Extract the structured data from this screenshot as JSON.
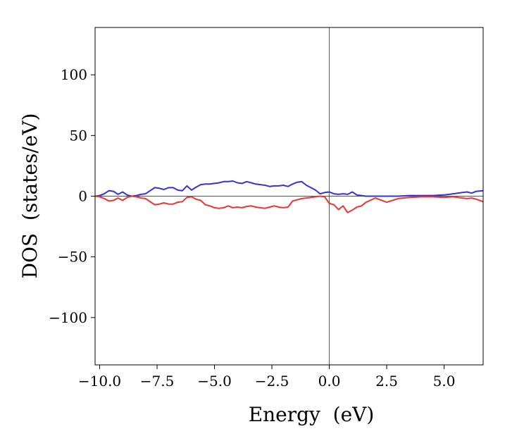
{
  "chart_data": {
    "type": "line",
    "xlabel": "Energy  (eV)",
    "ylabel": "DOS  (states/eV)",
    "xlim": [
      -10.2,
      6.7
    ],
    "ylim": [
      -139,
      139
    ],
    "xticks": [
      -10.0,
      -7.5,
      -5.0,
      -2.5,
      0.0,
      2.5,
      5.0
    ],
    "xtick_labels": [
      "−10.0",
      "−7.5",
      "−5.0",
      "−2.5",
      "0.0",
      "2.5",
      "5.0"
    ],
    "yticks": [
      100,
      50,
      0,
      -50,
      -100
    ],
    "ytick_labels": [
      "100",
      "50",
      "0",
      "−50",
      "−100"
    ],
    "reference_lines": {
      "vertical_x": 0,
      "horizontal_y": 0
    },
    "grid": false,
    "series": [
      {
        "color": "#3333dd",
        "x": [
          -10.2,
          -10.0,
          -9.8,
          -9.6,
          -9.4,
          -9.2,
          -9.0,
          -8.8,
          -8.6,
          -8.4,
          -8.2,
          -8.0,
          -7.8,
          -7.6,
          -7.4,
          -7.2,
          -7.0,
          -6.8,
          -6.6,
          -6.4,
          -6.2,
          -6.0,
          -5.8,
          -5.6,
          -5.4,
          -5.2,
          -5.0,
          -4.8,
          -4.6,
          -4.4,
          -4.2,
          -4.0,
          -3.8,
          -3.6,
          -3.4,
          -3.2,
          -3.0,
          -2.8,
          -2.6,
          -2.4,
          -2.2,
          -2.0,
          -1.8,
          -1.6,
          -1.4,
          -1.2,
          -1.0,
          -0.8,
          -0.6,
          -0.4,
          -0.2,
          0.0,
          0.2,
          0.4,
          0.6,
          0.8,
          1.0,
          1.2,
          1.4,
          1.6,
          2.0,
          2.5,
          3.0,
          3.5,
          4.0,
          4.5,
          5.0,
          5.4,
          5.8,
          6.0,
          6.2,
          6.4,
          6.7
        ],
        "y": [
          0,
          0.5,
          2,
          4.5,
          4,
          1.5,
          3.5,
          1,
          0,
          0.5,
          1.5,
          2,
          4.5,
          7,
          6.5,
          5.5,
          7,
          7,
          5,
          4.5,
          8.5,
          5,
          7.5,
          9.5,
          10,
          10,
          10.5,
          11,
          12,
          12,
          12.5,
          11,
          10.5,
          12,
          11,
          10,
          9.5,
          9,
          8,
          8.5,
          8.5,
          9,
          8,
          10,
          11.5,
          12,
          9,
          7,
          5,
          2,
          3,
          3.5,
          2,
          1.5,
          2,
          1.5,
          3.5,
          1,
          0.5,
          0,
          0,
          0,
          0,
          0.5,
          0.5,
          0.5,
          1,
          2,
          3,
          3.5,
          2.5,
          4,
          4.5
        ]
      },
      {
        "color": "#ee3333",
        "x": [
          -10.2,
          -10.0,
          -9.8,
          -9.6,
          -9.4,
          -9.2,
          -9.0,
          -8.8,
          -8.6,
          -8.4,
          -8.2,
          -8.0,
          -7.8,
          -7.6,
          -7.4,
          -7.2,
          -7.0,
          -6.8,
          -6.6,
          -6.4,
          -6.2,
          -6.0,
          -5.8,
          -5.6,
          -5.4,
          -5.2,
          -5.0,
          -4.8,
          -4.6,
          -4.4,
          -4.2,
          -4.0,
          -3.8,
          -3.6,
          -3.4,
          -3.2,
          -3.0,
          -2.8,
          -2.6,
          -2.4,
          -2.2,
          -2.0,
          -1.8,
          -1.6,
          -1.4,
          -1.2,
          -1.0,
          -0.8,
          -0.6,
          -0.4,
          -0.2,
          0.0,
          0.2,
          0.4,
          0.6,
          0.8,
          1.0,
          1.2,
          1.4,
          1.6,
          2.0,
          2.5,
          3.0,
          3.5,
          4.0,
          4.5,
          5.0,
          5.4,
          5.8,
          6.0,
          6.2,
          6.4,
          6.7
        ],
        "y": [
          0,
          -0.5,
          -2,
          -4,
          -3.5,
          -1.5,
          -3.5,
          -1,
          0,
          -0.5,
          -1.5,
          -2,
          -4.5,
          -7,
          -6.5,
          -5.5,
          -6.5,
          -6.5,
          -5,
          -4.5,
          -1,
          -0.5,
          -2.5,
          -3.5,
          -7,
          -8,
          -9.5,
          -10,
          -9.5,
          -8,
          -9.5,
          -9,
          -9.5,
          -8.5,
          -8,
          -9,
          -9.5,
          -10,
          -9,
          -8,
          -9,
          -9.5,
          -9,
          -4,
          -3,
          -2,
          -1.5,
          -1,
          -0.5,
          0,
          -0.5,
          -6,
          -7,
          -11,
          -8,
          -13.5,
          -11.5,
          -9,
          -8,
          -5,
          -1.5,
          -5,
          -2,
          -1,
          -0.5,
          -0.5,
          -1,
          -0.5,
          -1.5,
          -2,
          -1.5,
          -2.5,
          -4.5
        ]
      }
    ]
  }
}
